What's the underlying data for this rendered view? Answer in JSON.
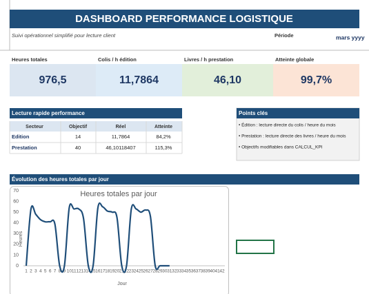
{
  "header": {
    "title": "DASHBOARD PERFORMANCE LOGISTIQUE",
    "subtitle": "Suivi opérationnel simplifié pour lecture client",
    "period_label": "Période",
    "period_value": "mars yyyy"
  },
  "kpis": [
    {
      "label": "Heures totales",
      "value": "976,5"
    },
    {
      "label": "Colis / h édition",
      "value": "11,7864"
    },
    {
      "label": "Livres / h prestation",
      "value": "46,10"
    },
    {
      "label": "Atteinte globale",
      "value": "99,7%"
    }
  ],
  "table": {
    "title": "Lecture rapide performance",
    "columns": [
      "Secteur",
      "Objectif",
      "Réel",
      "Atteinte"
    ],
    "rows": [
      [
        "Edition",
        "14",
        "11,7864",
        "84,2%"
      ],
      [
        "Prestation",
        "40",
        "46,10118407",
        "115,3%"
      ]
    ]
  },
  "points": {
    "title": "Points clés",
    "items": [
      "• Édition : lecture directe du colis / heure du mois",
      "• Prestation : lecture directe des livres / heure du mois",
      "• Objectifs modifiables dans CALCUL_KPI"
    ]
  },
  "section_title": "Évolution des heures totales par jour",
  "chart_data": {
    "type": "line",
    "title": "Heures totales par jour",
    "x_label": "Jour",
    "y_label": "Heures",
    "categories": [
      1,
      2,
      3,
      4,
      5,
      6,
      7,
      8,
      9,
      10,
      11,
      12,
      13,
      14,
      15,
      16,
      17,
      18,
      19,
      20,
      21,
      22,
      23,
      24,
      25,
      26,
      27,
      28,
      29,
      30,
      31,
      32,
      33,
      34,
      35,
      36,
      37,
      38,
      39,
      40,
      41,
      42
    ],
    "series": [
      {
        "name": "Heures",
        "color": "#1f4e79",
        "values": [
          0,
          53,
          48,
          43,
          41,
          41,
          39,
          0,
          0,
          54,
          53,
          53,
          44,
          0,
          0,
          54,
          55,
          51,
          50,
          45,
          0,
          0,
          53,
          53,
          50,
          52,
          46,
          0,
          0,
          0,
          0,
          null,
          null,
          null,
          null,
          null,
          null,
          null,
          null,
          null,
          null,
          null
        ]
      }
    ],
    "ylim": [
      0,
      70
    ],
    "yticks": [
      0,
      10,
      20,
      30,
      40,
      50,
      60,
      70
    ],
    "grid": false
  }
}
